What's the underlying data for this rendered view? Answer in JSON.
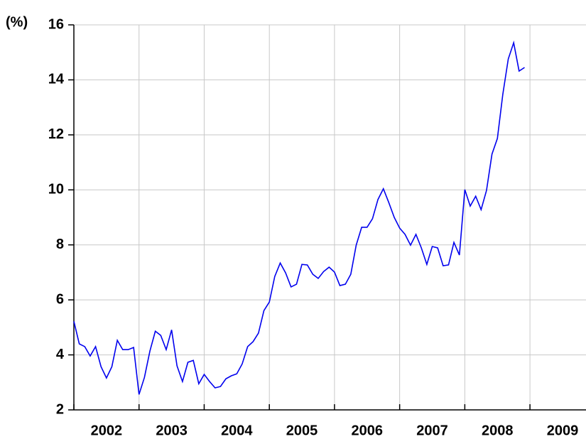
{
  "chart_data": {
    "type": "line",
    "y_label": "(%)",
    "x": [
      2002,
      2002.083,
      2002.167,
      2002.25,
      2002.333,
      2002.417,
      2002.5,
      2002.583,
      2002.667,
      2002.75,
      2002.833,
      2002.917,
      2003,
      2003.083,
      2003.167,
      2003.25,
      2003.333,
      2003.417,
      2003.5,
      2003.583,
      2003.667,
      2003.75,
      2003.833,
      2003.917,
      2004,
      2004.083,
      2004.167,
      2004.25,
      2004.333,
      2004.417,
      2004.5,
      2004.583,
      2004.667,
      2004.75,
      2004.833,
      2004.917,
      2005,
      2005.083,
      2005.167,
      2005.25,
      2005.333,
      2005.417,
      2005.5,
      2005.583,
      2005.667,
      2005.75,
      2005.833,
      2005.917,
      2006,
      2006.083,
      2006.167,
      2006.25,
      2006.333,
      2006.417,
      2006.5,
      2006.583,
      2006.667,
      2006.75,
      2006.833,
      2006.917,
      2007,
      2007.083,
      2007.167,
      2007.25,
      2007.333,
      2007.417,
      2007.5,
      2007.583,
      2007.667,
      2007.75,
      2007.833,
      2007.917,
      2008,
      2008.083,
      2008.167,
      2008.25,
      2008.333,
      2008.417,
      2008.5,
      2008.583,
      2008.667,
      2008.75,
      2008.833,
      2008.917
    ],
    "series": [
      {
        "color": "#0000ee",
        "values": [
          5.22,
          4.4,
          4.3,
          3.96,
          4.3,
          3.57,
          3.16,
          3.57,
          4.53,
          4.19,
          4.19,
          4.27,
          2.56,
          3.18,
          4.14,
          4.86,
          4.71,
          4.19,
          4.91,
          3.6,
          3.03,
          3.73,
          3.8,
          2.95,
          3.29,
          3.03,
          2.8,
          2.85,
          3.13,
          3.24,
          3.31,
          3.67,
          4.3,
          4.48,
          4.79,
          5.61,
          5.92,
          6.85,
          7.34,
          6.98,
          6.47,
          6.57,
          7.29,
          7.27,
          6.93,
          6.78,
          7.03,
          7.19,
          7.01,
          6.52,
          6.57,
          6.93,
          7.99,
          8.64,
          8.64,
          8.95,
          9.65,
          10.04,
          9.54,
          9.0,
          8.61,
          8.38,
          7.99,
          8.38,
          7.89,
          7.29,
          7.94,
          7.89,
          7.24,
          7.27,
          8.09,
          7.63,
          10.01,
          9.41,
          9.77,
          9.28,
          9.98,
          11.3,
          11.87,
          13.47,
          14.76,
          15.35,
          14.32,
          14.45
        ]
      }
    ],
    "xlim": [
      2002,
      2009.86
    ],
    "xticks": [
      2002,
      2003,
      2004,
      2005,
      2006,
      2007,
      2008,
      2009
    ],
    "ylim": [
      2,
      16
    ],
    "yticks": [
      2,
      4,
      6,
      8,
      10,
      12,
      14,
      16
    ],
    "grid": true
  }
}
